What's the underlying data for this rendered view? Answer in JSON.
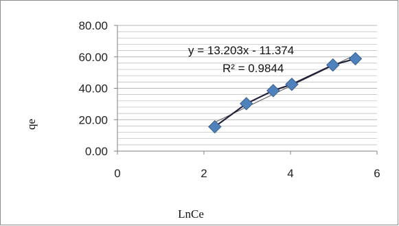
{
  "chart_data": {
    "type": "scatter",
    "xlabel": "LnCe",
    "ylabel": "qe",
    "xlim": [
      0,
      6
    ],
    "ylim": [
      0,
      80
    ],
    "x_ticks": [
      "0",
      "2",
      "4",
      "6"
    ],
    "y_ticks": [
      "0.00",
      "20.00",
      "40.00",
      "60.00",
      "80.00"
    ],
    "grid": true,
    "points": [
      {
        "x": 2.25,
        "y": 15.5
      },
      {
        "x": 2.98,
        "y": 30.2
      },
      {
        "x": 3.6,
        "y": 38.5
      },
      {
        "x": 4.03,
        "y": 42.5
      },
      {
        "x": 4.98,
        "y": 54.8
      },
      {
        "x": 5.5,
        "y": 58.8
      }
    ],
    "trendline": {
      "type": "linear",
      "equation": "y = 13.203x - 11.374",
      "r_squared_label": "R² = 0.9844"
    },
    "colors": {
      "marker": "#4f81bd",
      "marker_stroke": "#385d8a",
      "line": "#1f1f3a",
      "gridline": "#b7b7b7"
    }
  }
}
